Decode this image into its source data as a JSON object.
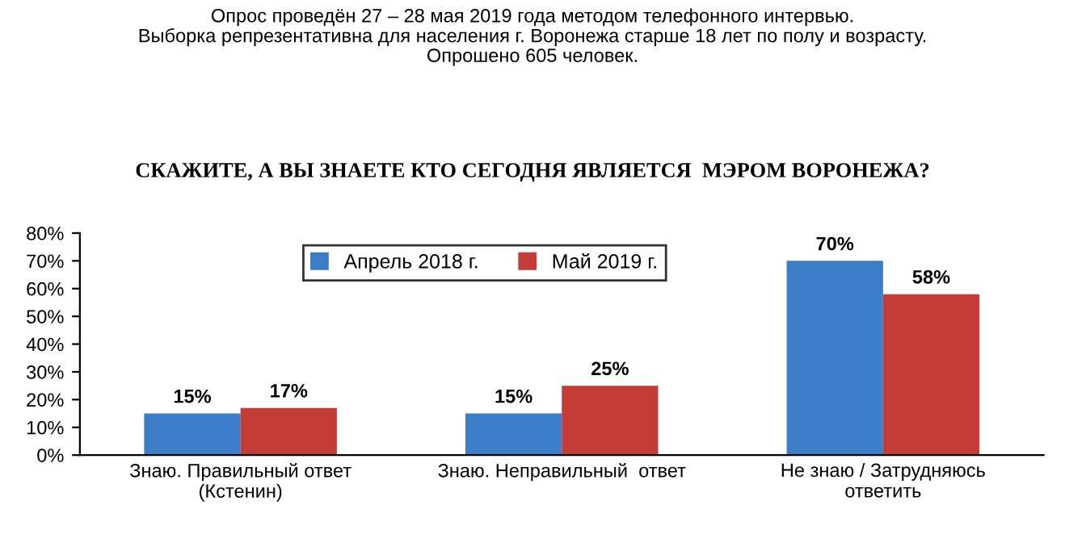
{
  "chart_data": {
    "type": "bar",
    "title": "СКАЖИТЕ, А ВЫ ЗНАЕТЕ КТО СЕГОДНЯ ЯВЛЯЕТСЯ  МЭРОМ ВОРОНЕЖА?",
    "subtitle": "Опрос проведён 27 – 28 мая 2019 года методом телефонного интервью.\nВыборка репрезентативна для населения г. Воронежа старше 18 лет по полу и возрасту.\nОпрошено 605 человек.",
    "categories": [
      "Знаю. Правильный ответ\n(Кстенин)",
      "Знаю. Неправильный  ответ",
      "Не знаю / Затрудняюсь\nответить"
    ],
    "series": [
      {
        "name": "Апрель 2018 г.",
        "color": "#3b7dc8",
        "values": [
          15,
          15,
          70
        ],
        "value_labels": [
          "15%",
          "15%",
          "70%"
        ]
      },
      {
        "name": "Май 2019 г.",
        "color": "#c43c36",
        "values": [
          17,
          25,
          58
        ],
        "value_labels": [
          "17%",
          "25%",
          "58%"
        ]
      }
    ],
    "ylim": [
      0,
      80
    ],
    "yticks": [
      {
        "value": 0,
        "label": "0%"
      },
      {
        "value": 10,
        "label": "10%"
      },
      {
        "value": 20,
        "label": "20%"
      },
      {
        "value": 30,
        "label": "30%"
      },
      {
        "value": 40,
        "label": "40%"
      },
      {
        "value": 50,
        "label": "50%"
      },
      {
        "value": 60,
        "label": "60%"
      },
      {
        "value": 70,
        "label": "70%"
      },
      {
        "value": 80,
        "label": "80%"
      }
    ],
    "legend": "top"
  }
}
